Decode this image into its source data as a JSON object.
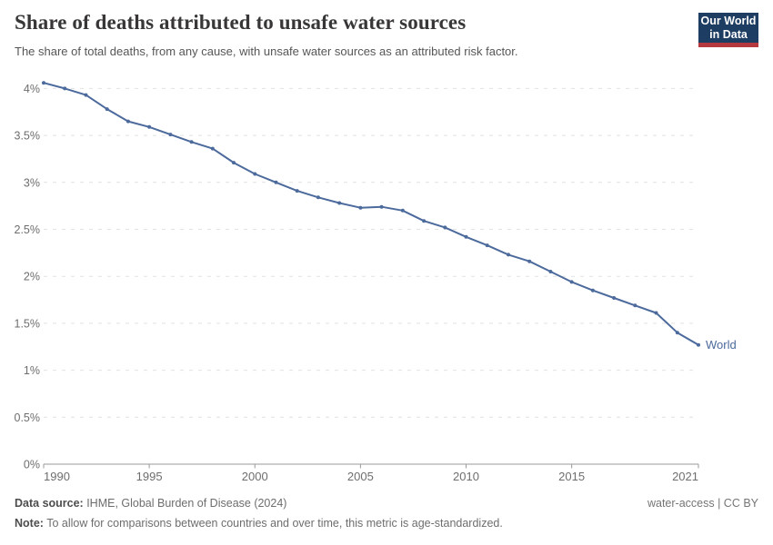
{
  "header": {
    "title": "Share of deaths attributed to unsafe water sources",
    "subtitle": "The share of total deaths, from any cause, with unsafe water sources as an attributed risk factor.",
    "logo": {
      "line1": "Our World",
      "line2": "in Data",
      "bg_color": "#1d3d63",
      "bar_color": "#b5383f"
    }
  },
  "chart_data": {
    "type": "line",
    "title": "Share of deaths attributed to unsafe water sources",
    "xlabel": "",
    "ylabel": "",
    "x": [
      1990,
      1991,
      1992,
      1993,
      1994,
      1995,
      1996,
      1997,
      1998,
      1999,
      2000,
      2001,
      2002,
      2003,
      2004,
      2005,
      2006,
      2007,
      2008,
      2009,
      2010,
      2011,
      2012,
      2013,
      2014,
      2015,
      2016,
      2017,
      2018,
      2019,
      2020,
      2021
    ],
    "series": [
      {
        "name": "World",
        "unit": "%",
        "values": [
          4.06,
          4.0,
          3.93,
          3.78,
          3.65,
          3.59,
          3.51,
          3.43,
          3.36,
          3.21,
          3.09,
          3.0,
          2.91,
          2.84,
          2.78,
          2.73,
          2.74,
          2.7,
          2.59,
          2.52,
          2.42,
          2.33,
          2.23,
          2.16,
          2.05,
          1.94,
          1.85,
          1.77,
          1.69,
          1.61,
          1.4,
          1.27
        ]
      }
    ],
    "xlim": [
      1990,
      2021
    ],
    "ylim": [
      0,
      4
    ],
    "x_ticks": [
      1990,
      1995,
      2000,
      2005,
      2010,
      2015,
      2021
    ],
    "y_ticks": [
      {
        "value": 0,
        "label": "0%"
      },
      {
        "value": 0.5,
        "label": "0.5%"
      },
      {
        "value": 1,
        "label": "1%"
      },
      {
        "value": 1.5,
        "label": "1.5%"
      },
      {
        "value": 2,
        "label": "2%"
      },
      {
        "value": 2.5,
        "label": "2.5%"
      },
      {
        "value": 3,
        "label": "3%"
      },
      {
        "value": 3.5,
        "label": "3.5%"
      },
      {
        "value": 4,
        "label": "4%"
      }
    ],
    "grid": "horizontal-dashed",
    "legend_position": "end-of-line-label",
    "line_color": "#4c6a9c",
    "grid_color": "#e2e2e2",
    "axis_color": "#9a9a9a",
    "tick_label_color": "#6e6e6e"
  },
  "footer": {
    "datasource_label": "Data source:",
    "datasource_value": " IHME, Global Burden of Disease (2024)",
    "license": "water-access | CC BY",
    "note_label": "Note:",
    "note_value": " To allow for comparisons between countries and over time, this metric is age-standardized."
  }
}
